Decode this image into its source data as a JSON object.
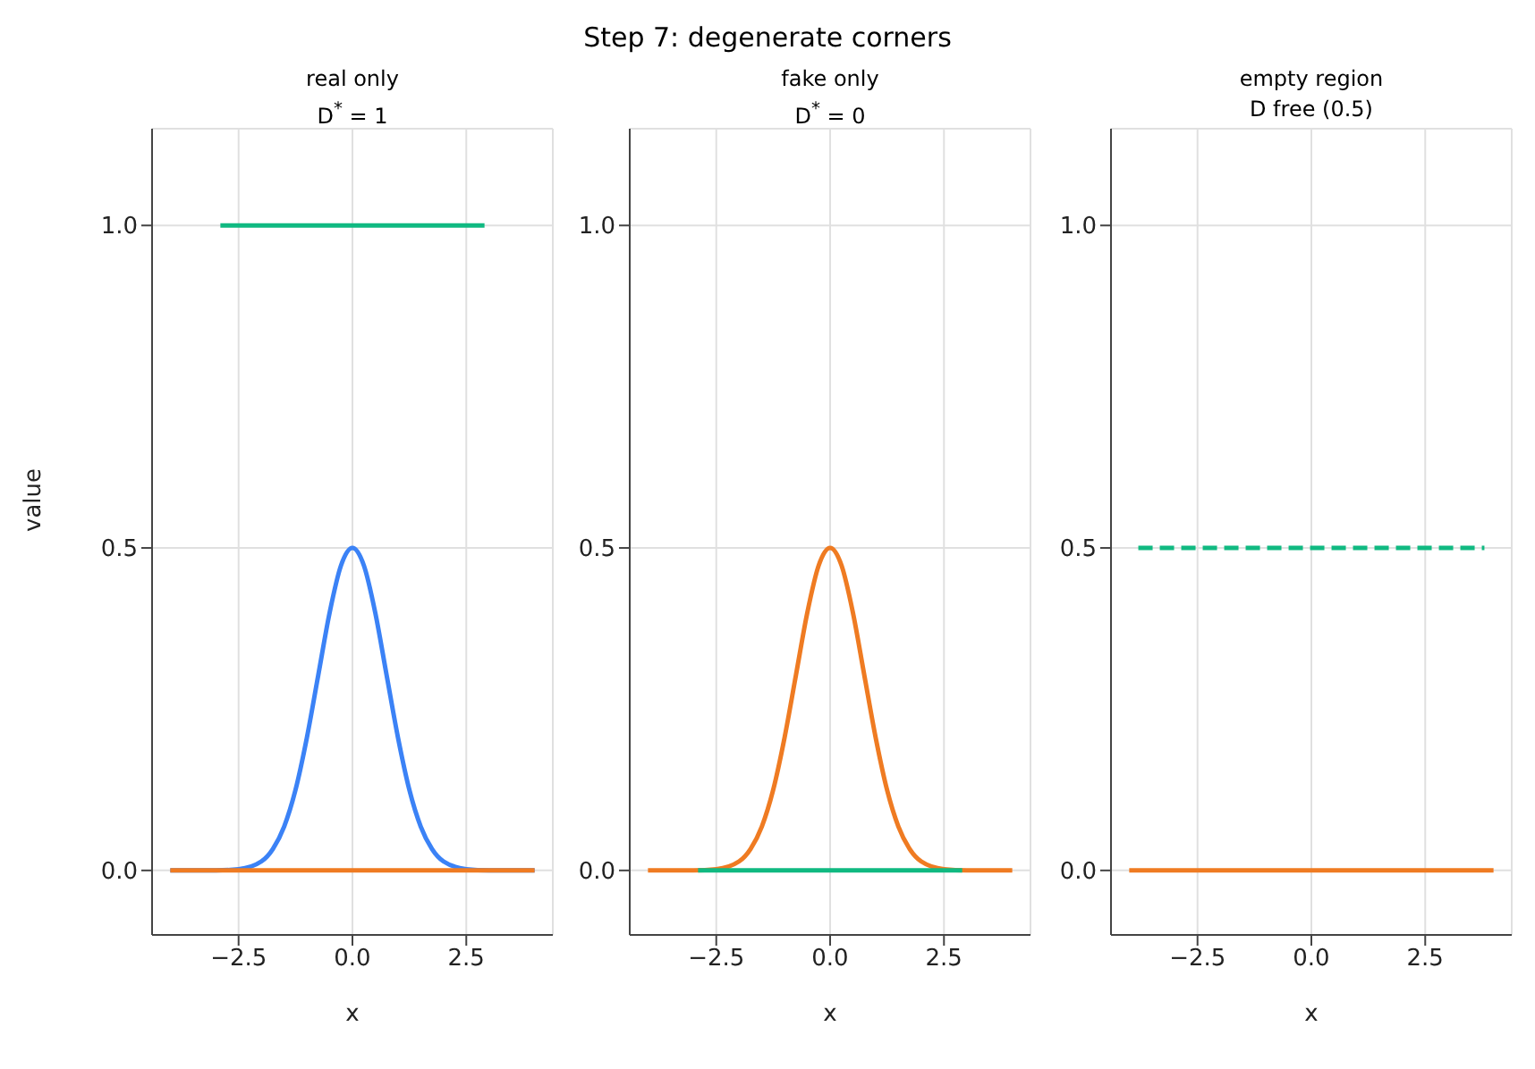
{
  "chart_data": [
    {
      "type": "line",
      "title": "real only",
      "subtitle": "D$^{*}$ = 1",
      "xlabel": "x",
      "ylabel": "value",
      "annotations": [
        "Step 7: degenerate corners"
      ],
      "xlim": [
        -4.4,
        4.4
      ],
      "ylim": [
        -0.1,
        1.15
      ],
      "xticks": [
        {
          "value": -2.5,
          "label": "−2.5"
        },
        {
          "value": 0,
          "label": "0.0"
        },
        {
          "value": 2.5,
          "label": "2.5"
        }
      ],
      "yticks": [
        {
          "value": 0,
          "label": "0.0"
        },
        {
          "value": 0.5,
          "label": "0.5"
        },
        {
          "value": 1,
          "label": "1.0"
        }
      ],
      "grid": true,
      "marker": "none",
      "series": [
        {
          "color": "#3b82f6",
          "x": [
            -4,
            -3,
            -2.5,
            -2,
            -1.75,
            -1.5,
            -1.25,
            -1,
            -0.75,
            -0.5,
            -0.25,
            0,
            0.25,
            0.5,
            0.75,
            1,
            1.25,
            1.5,
            1.75,
            2,
            2.5,
            3,
            4
          ],
          "values": [
            0,
            0,
            0.002,
            0.014,
            0.033,
            0.068,
            0.125,
            0.206,
            0.303,
            0.4,
            0.473,
            0.5,
            0.473,
            0.4,
            0.303,
            0.206,
            0.125,
            0.068,
            0.033,
            0.014,
            0.002,
            0,
            0
          ]
        },
        {
          "color": "#ef7b22",
          "x": [
            -4,
            4
          ],
          "values": [
            0,
            0
          ]
        },
        {
          "color": "#10b981",
          "x": [
            -2.9,
            2.9
          ],
          "values": [
            1,
            1
          ]
        }
      ]
    },
    {
      "type": "line",
      "title": "fake only",
      "subtitle": "D$^{*}$ = 0",
      "xlabel": "x",
      "xlim": [
        -4.4,
        4.4
      ],
      "ylim": [
        -0.1,
        1.15
      ],
      "xticks": [
        {
          "value": -2.5,
          "label": "−2.5"
        },
        {
          "value": 0,
          "label": "0.0"
        },
        {
          "value": 2.5,
          "label": "2.5"
        }
      ],
      "yticks": [
        {
          "value": 0,
          "label": "0.0"
        },
        {
          "value": 0.5,
          "label": "0.5"
        },
        {
          "value": 1,
          "label": "1.0"
        }
      ],
      "grid": true,
      "marker": "none",
      "series": [
        {
          "color": "#ef7b22",
          "x": [
            -4,
            -3,
            -2.5,
            -2,
            -1.75,
            -1.5,
            -1.25,
            -1,
            -0.75,
            -0.5,
            -0.25,
            0,
            0.25,
            0.5,
            0.75,
            1,
            1.25,
            1.5,
            1.75,
            2,
            2.5,
            3,
            4
          ],
          "values": [
            0,
            0,
            0.002,
            0.014,
            0.033,
            0.068,
            0.125,
            0.206,
            0.303,
            0.4,
            0.473,
            0.5,
            0.473,
            0.4,
            0.303,
            0.206,
            0.125,
            0.068,
            0.033,
            0.014,
            0.002,
            0,
            0
          ]
        },
        {
          "color": "#10b981",
          "x": [
            -2.9,
            2.9
          ],
          "values": [
            0,
            0
          ]
        }
      ]
    },
    {
      "type": "line",
      "title": "empty region",
      "subtitle": "D free (0.5)",
      "xlabel": "x",
      "xlim": [
        -4.4,
        4.4
      ],
      "ylim": [
        -0.1,
        1.15
      ],
      "xticks": [
        {
          "value": -2.5,
          "label": "−2.5"
        },
        {
          "value": 0,
          "label": "0.0"
        },
        {
          "value": 2.5,
          "label": "2.5"
        }
      ],
      "yticks": [
        {
          "value": 0,
          "label": "0.0"
        },
        {
          "value": 0.5,
          "label": "0.5"
        },
        {
          "value": 1,
          "label": "1.0"
        }
      ],
      "grid": true,
      "marker": "none",
      "series": [
        {
          "color": "#10b981",
          "line_style": "dashed",
          "x": [
            -3.8,
            3.8
          ],
          "values": [
            0.5,
            0.5
          ]
        },
        {
          "color": "#ef7b22",
          "x": [
            -4,
            4
          ],
          "values": [
            0,
            0
          ]
        }
      ]
    }
  ]
}
